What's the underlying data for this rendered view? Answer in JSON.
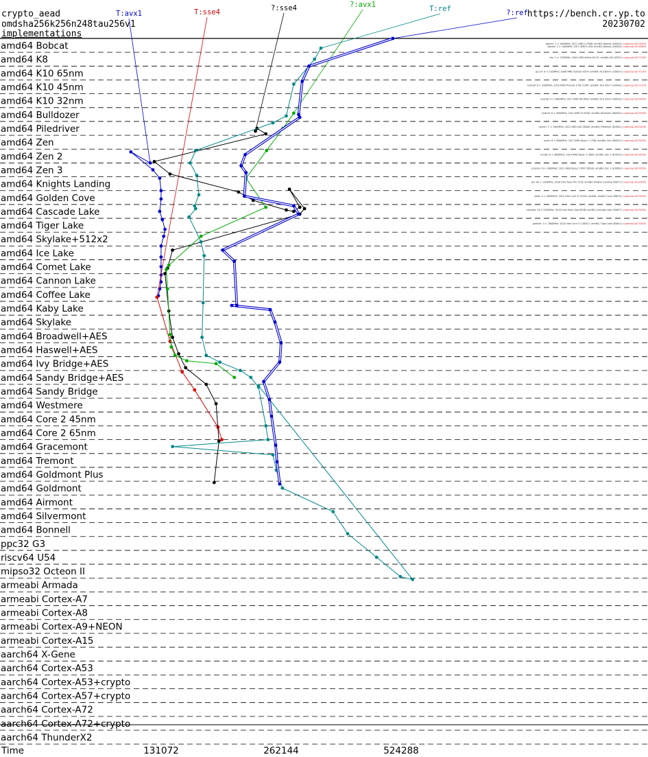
{
  "header": {
    "primitive": "crypto_aead",
    "operation": "omdsha256k256n248tau256v1",
    "implementations_label": "implementations",
    "site": "https://bench.cr.yp.to",
    "date": "20230702"
  },
  "chart_data": {
    "type": "line",
    "orientation": "horizontal",
    "xlabel": "Time",
    "xscale": "log2",
    "xticks": [
      {
        "value": 131072,
        "label": "131072"
      },
      {
        "value": 262144,
        "label": "262144"
      },
      {
        "value": 524288,
        "label": "524288"
      }
    ],
    "categories": [
      "amd64 Bobcat",
      "amd64 K8",
      "amd64 K10 65nm",
      "amd64 K10 45nm",
      "amd64 K10 32nm",
      "amd64 Bulldozer",
      "amd64 Piledriver",
      "amd64 Zen",
      "amd64 Zen 2",
      "amd64 Zen 3",
      "amd64 Knights Landing",
      "amd64 Golden Cove",
      "amd64 Cascade Lake",
      "amd64 Tiger Lake",
      "amd64 Skylake+512x2",
      "amd64 Ice Lake",
      "amd64 Comet Lake",
      "amd64 Cannon Lake",
      "amd64 Coffee Lake",
      "amd64 Kaby Lake",
      "amd64 Skylake",
      "amd64 Broadwell+AES",
      "amd64 Haswell+AES",
      "amd64 Ivy Bridge+AES",
      "amd64 Sandy Bridge+AES",
      "amd64 Sandy Bridge",
      "amd64 Westmere",
      "amd64 Core 2 45nm",
      "amd64 Core 2 65nm",
      "amd64 Gracemont",
      "amd64 Tremont",
      "amd64 Goldmont Plus",
      "amd64 Goldmont",
      "amd64 Airmont",
      "amd64 Silvermont",
      "amd64 Bonnell",
      "ppc32 G3",
      "riscv64 U54",
      "mipso32 Octeon II",
      "armeabi Armada",
      "armeabi Cortex-A7",
      "armeabi Cortex-A8",
      "armeabi Cortex-A9+NEON",
      "armeabi Cortex-A15",
      "aarch64 X-Gene",
      "aarch64 Cortex-A53",
      "aarch64 Cortex-A53+crypto",
      "aarch64 Cortex-A57+crypto",
      "aarch64 Cortex-A72",
      "aarch64 Cortex-A72+crypto",
      "aarch64 ThunderX2"
    ],
    "series": [
      {
        "name": "T:avx1",
        "color": "#0000cc",
        "points": [
          [
            123000,
            8.5
          ],
          [
            110000,
            7.7
          ],
          [
            125000,
            9.0
          ],
          [
            130000,
            9.6
          ],
          [
            131000,
            10.5
          ],
          [
            131000,
            11.1
          ],
          [
            130000,
            12.0
          ],
          [
            132000,
            12.6
          ],
          [
            134000,
            13.3
          ],
          [
            133000,
            13.8
          ],
          [
            131000,
            14.5
          ],
          [
            131000,
            15.3
          ],
          [
            131000,
            16.0
          ],
          [
            131000,
            16.6
          ],
          [
            131000,
            17.1
          ],
          [
            130000,
            17.6
          ],
          [
            129000,
            18.1
          ],
          [
            128000,
            18.2
          ]
        ]
      },
      {
        "name": "T:sse4",
        "color": "#dd0000",
        "points": [
          [
            128000,
            18.2
          ],
          [
            138000,
            21.4
          ],
          [
            148000,
            23.6
          ],
          [
            159000,
            24.9
          ],
          [
            182000,
            27.6
          ],
          [
            186000,
            28.5
          ]
        ]
      },
      {
        "name": "?:sse4",
        "color": "#000000",
        "points": [
          [
            226000,
            6.2
          ],
          [
            228000,
            6.0
          ],
          [
            240000,
            6.4
          ],
          [
            126000,
            8.4
          ],
          [
            138000,
            9.3
          ],
          [
            205000,
            10.6
          ],
          [
            223000,
            11.2
          ],
          [
            270000,
            11.9
          ],
          [
            282000,
            12.0
          ],
          [
            292000,
            11.7
          ],
          [
            275000,
            10.4
          ],
          [
            300000,
            11.8
          ],
          [
            292000,
            12.2
          ],
          [
            140000,
            14.8
          ],
          [
            136000,
            16.1
          ],
          [
            134000,
            16.5
          ],
          [
            137000,
            19.2
          ],
          [
            140000,
            21.1
          ],
          [
            145000,
            22.3
          ],
          [
            151000,
            23.3
          ],
          [
            170000,
            24.5
          ],
          [
            180000,
            25.9
          ],
          [
            183000,
            28.6
          ],
          [
            178000,
            31.6
          ]
        ]
      },
      {
        "name": "?:avx1",
        "color": "#00aa00",
        "points": [
          [
            282000,
            4.9
          ],
          [
            265000,
            6.0
          ],
          [
            241000,
            7.6
          ],
          [
            214000,
            9.6
          ],
          [
            240000,
            11.7
          ],
          [
            165000,
            13.8
          ],
          [
            137000,
            15.9
          ],
          [
            135000,
            16.2
          ],
          [
            136000,
            17.6
          ],
          [
            138000,
            20.9
          ],
          [
            139000,
            21.8
          ],
          [
            142000,
            22.4
          ],
          [
            152000,
            22.8
          ],
          [
            180000,
            23.0
          ],
          [
            200000,
            24.0
          ]
        ]
      },
      {
        "name": "T:ref",
        "color": "#008888",
        "points": [
          [
            330000,
            0.2
          ],
          [
            318000,
            1.0
          ],
          [
            282000,
            2.8
          ],
          [
            270000,
            5.1
          ],
          [
            250000,
            5.6
          ],
          [
            160000,
            7.6
          ],
          [
            155000,
            8.5
          ],
          [
            161000,
            9.4
          ],
          [
            163000,
            10.8
          ],
          [
            159000,
            11.6
          ],
          [
            160000,
            11.8
          ],
          [
            154000,
            12.4
          ],
          [
            165000,
            14.2
          ],
          [
            168000,
            15.2
          ],
          [
            167000,
            18.6
          ],
          [
            166000,
            21.1
          ],
          [
            170000,
            22.4
          ],
          [
            184000,
            22.9
          ],
          [
            207000,
            23.5
          ],
          [
            220000,
            24.0
          ],
          [
            230000,
            24.7
          ],
          [
            240000,
            27.5
          ],
          [
            243000,
            28.5
          ],
          [
            140000,
            29.0
          ],
          [
            250000,
            29.6
          ],
          [
            255000,
            30.7
          ],
          [
            264000,
            32.0
          ],
          [
            354000,
            33.7
          ],
          [
            385000,
            35.3
          ],
          [
            455000,
            37.0
          ],
          [
            522000,
            38.4
          ],
          [
            560000,
            38.6
          ],
          [
            230000,
            24.6
          ]
        ]
      },
      {
        "name": "?:ref",
        "color": "#0000cc",
        "points": [
          [
            500000,
            -0.5
          ],
          [
            308000,
            1.5
          ],
          [
            296000,
            2.6
          ],
          [
            290000,
            5.0
          ],
          [
            292000,
            5.2
          ],
          [
            213000,
            7.9
          ],
          [
            208000,
            8.7
          ],
          [
            214000,
            9.2
          ],
          [
            212000,
            10.9
          ],
          [
            282000,
            11.6
          ],
          [
            290000,
            12.2
          ],
          [
            187000,
            14.8
          ],
          [
            200000,
            15.6
          ],
          [
            203000,
            18.8
          ],
          [
            197000,
            18.8
          ],
          [
            246000,
            19.1
          ],
          [
            253000,
            20.0
          ],
          [
            262000,
            21.5
          ],
          [
            260000,
            22.9
          ],
          [
            237000,
            24.3
          ],
          [
            245000,
            25.6
          ],
          [
            248000,
            26.8
          ],
          [
            254000,
            28.9
          ],
          [
            256000,
            30.1
          ],
          [
            260000,
            31.7
          ]
        ]
      }
    ],
    "series_labels": [
      "T:avx1",
      "T:sse4",
      "?:sse4",
      "?:avx1",
      "T:ref",
      "?:ref"
    ]
  },
  "machines": [
    {
      "host": "bbmini",
      "desc": "2 × 1600MHz; 2011 AMD G-T56N; amd64; Bobcat (500f20)",
      "ver": "supercop-20230530"
    },
    {
      "host": "bbcafe",
      "desc": "2 × 1000MHz; 2011 AMD E-450; amd64; Bobcat (500f20)",
      "ver": "supercop-20180818"
    },
    {
      "host": "hoc",
      "desc": "2 × 2500MHz; 2005 AMD Athlon 64 X2; amd64; K8 (40f32)",
      "ver": "supercop-20171020"
    },
    {
      "host": "gcc14",
      "desc": "8 × 2100MHz; 2008 AMD Opteron 8354; amd64; K10 65nm (100f23)",
      "ver": "supercop-20171218"
    },
    {
      "host": "hydra8",
      "desc": "6 × 3300MHz; 2010 AMD Phenom II X6 1100T; amd64; K10 45nm (100fa0)",
      "ver": "supercop-20171218"
    },
    {
      "host": "hydra6",
      "desc": "4 × 2600MHz; 2011 AMD A6-3650; amd64; K10 32nm (300f10)",
      "ver": "supercop-20230530"
    },
    {
      "host": "hydra9",
      "desc": "8 × 4000MHz; 2012 AMD FX-8350; amd64; Bulldozer (600f20)",
      "ver": "supercop-20230530"
    },
    {
      "host": "hydra7",
      "desc": "2 × 3900MHz; 2012 AMD A10-5800K; amd64; Piledriver (610f01)",
      "ver": "supercop-20230530"
    },
    {
      "host": "ryzen",
      "desc": "8 × 3600MHz; 2017 AMD Ryzen 7 1700; amd64; Zen (800f11)",
      "ver": "supercop-20230530"
    },
    {
      "host": "jumbo",
      "desc": "8 × 3600MHz; 2019 AMD Ryzen 5 3600; amd64; Zen 2 (870f10)",
      "ver": "supercop-20230530"
    },
    {
      "host": "cezanne",
      "desc": "6 × 3800MHz; 2021 AMD Ryzen 5 PRO 5650G; amd64; Zen 3 (a50f00)",
      "ver": "supercop-20230530"
    },
    {
      "host": "phi",
      "desc": "64 × 1300MHz; 2016 Intel Xeon Phi 7210; amd64; Knights Landing (50671)",
      "ver": "supercop-20230530"
    },
    {
      "host": "alder",
      "desc": "4 × 3000MHz; 2022 Intel Core i3-12100; amd64; Golden Cove (90675)",
      "ver": "supercop-20230530"
    },
    {
      "host": "cascade",
      "desc": "20 × 2500MHz; 2019 Intel Xeon Gold 6248; amd64; Cascade Lake (50657)",
      "ver": "supercop-20230530"
    },
    {
      "host": "gardner",
      "desc": "4 × 2800MHz; 2020 Intel Core i7-1165G7; amd64; Tiger Lake (806c1)",
      "ver": "supercop-20230530"
    }
  ]
}
